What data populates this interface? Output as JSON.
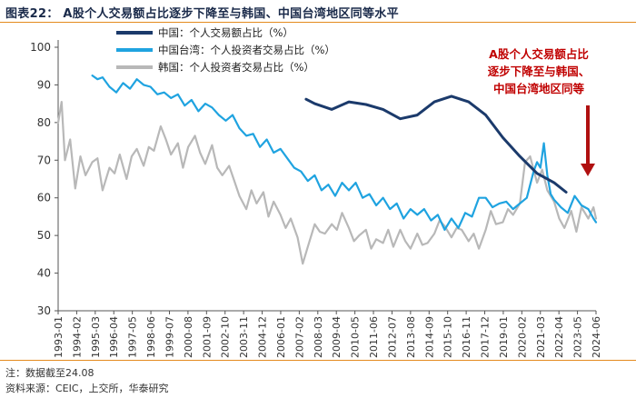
{
  "header": {
    "title": "图表22： A股个人交易额占比逐步下降至与韩国、中国台湾地区同等水平"
  },
  "footer": {
    "note": "注：数据截至24.08",
    "source": "资料来源：CEIC，上交所，华泰研究"
  },
  "annotation": {
    "lines": [
      "A股个人交易额占比",
      "逐步下降至与韩国、",
      "中国台湾地区同等"
    ],
    "color": "#c00000"
  },
  "chart_data": {
    "type": "line",
    "ylim": [
      30,
      100
    ],
    "yticks": [
      30,
      40,
      50,
      60,
      70,
      80,
      90,
      100
    ],
    "xrange": [
      1993.0,
      2024.45
    ],
    "xticks": [
      "1993-01",
      "1994-02",
      "1995-03",
      "1996-04",
      "1997-05",
      "1998-06",
      "1999-07",
      "2000-08",
      "2001-09",
      "2002-10",
      "2003-11",
      "2004-12",
      "2006-01",
      "2007-02",
      "2008-03",
      "2009-04",
      "2010-05",
      "2011-06",
      "2012-07",
      "2013-08",
      "2014-09",
      "2015-10",
      "2016-11",
      "2017-12",
      "2019-01",
      "2020-02",
      "2021-03",
      "2022-04",
      "2023-05",
      "2024-06"
    ],
    "legend_position": "top-left",
    "grid": false,
    "series": [
      {
        "name": "中国：个人交易额占比（%）",
        "color": "#1b3a6b",
        "width": 3,
        "x": [
          2007.5,
          2008.0,
          2009.0,
          2010.0,
          2011.0,
          2012.0,
          2013.0,
          2014.0,
          2015.0,
          2016.0,
          2017.0,
          2018.0,
          2019.0,
          2020.0,
          2021.0,
          2022.0,
          2022.7
        ],
        "y": [
          86.2,
          85.0,
          83.5,
          85.5,
          84.8,
          83.5,
          81.0,
          82.0,
          85.5,
          87.0,
          85.5,
          82.0,
          76.0,
          71.0,
          66.5,
          64.0,
          61.5
        ]
      },
      {
        "name": "中国台湾：个人投资者交易占比（%）",
        "color": "#1fa3e0",
        "width": 2.2,
        "x": [
          1995.0,
          1995.3,
          1995.6,
          1996.0,
          1996.4,
          1996.8,
          1997.2,
          1997.6,
          1998.0,
          1998.4,
          1998.8,
          1999.2,
          1999.6,
          2000.0,
          2000.4,
          2000.8,
          2001.2,
          2001.6,
          2002.0,
          2002.4,
          2002.8,
          2003.2,
          2003.6,
          2004.0,
          2004.4,
          2004.8,
          2005.2,
          2005.6,
          2006.0,
          2006.4,
          2006.8,
          2007.2,
          2007.6,
          2008.0,
          2008.4,
          2008.8,
          2009.2,
          2009.6,
          2010.0,
          2010.4,
          2010.8,
          2011.2,
          2011.6,
          2012.0,
          2012.4,
          2012.8,
          2013.2,
          2013.6,
          2014.0,
          2014.4,
          2014.8,
          2015.2,
          2015.6,
          2016.0,
          2016.4,
          2016.8,
          2017.2,
          2017.6,
          2018.0,
          2018.4,
          2018.8,
          2019.2,
          2019.6,
          2020.0,
          2020.4,
          2020.8,
          2021.0,
          2021.2,
          2021.4,
          2021.6,
          2021.8,
          2022.0,
          2022.4,
          2022.8,
          2023.2,
          2023.6,
          2024.0,
          2024.3,
          2024.45
        ],
        "y": [
          92.5,
          91.5,
          92.0,
          89.5,
          88.0,
          90.5,
          89.0,
          91.5,
          90.0,
          89.5,
          87.5,
          88.0,
          86.5,
          87.5,
          84.5,
          86.0,
          83.0,
          85.0,
          84.0,
          82.0,
          80.5,
          82.0,
          78.5,
          76.5,
          77.0,
          73.5,
          75.5,
          72.0,
          73.0,
          70.5,
          68.0,
          67.0,
          64.5,
          66.0,
          62.0,
          63.5,
          60.5,
          64.0,
          62.0,
          64.0,
          60.0,
          61.0,
          58.0,
          60.0,
          57.0,
          58.5,
          54.5,
          57.0,
          55.5,
          57.0,
          54.0,
          55.5,
          51.5,
          54.5,
          52.0,
          56.0,
          55.0,
          60.0,
          60.0,
          57.5,
          58.5,
          59.0,
          57.0,
          58.5,
          60.0,
          67.0,
          69.5,
          68.0,
          74.5,
          66.0,
          61.0,
          59.5,
          57.5,
          56.0,
          60.5,
          58.0,
          57.0,
          54.5,
          53.5
        ]
      },
      {
        "name": "韩国：个人投资者交易占比（%）",
        "color": "#b8b8b8",
        "width": 2.2,
        "x": [
          1993.0,
          1993.2,
          1993.4,
          1993.7,
          1994.0,
          1994.3,
          1994.6,
          1995.0,
          1995.3,
          1995.6,
          1996.0,
          1996.3,
          1996.6,
          1997.0,
          1997.3,
          1997.6,
          1998.0,
          1998.3,
          1998.6,
          1999.0,
          1999.3,
          1999.6,
          2000.0,
          2000.3,
          2000.6,
          2001.0,
          2001.3,
          2001.6,
          2002.0,
          2002.3,
          2002.6,
          2003.0,
          2003.3,
          2003.6,
          2004.0,
          2004.3,
          2004.6,
          2005.0,
          2005.3,
          2005.6,
          2006.0,
          2006.3,
          2006.6,
          2007.0,
          2007.3,
          2007.6,
          2008.0,
          2008.3,
          2008.6,
          2009.0,
          2009.3,
          2009.6,
          2010.0,
          2010.3,
          2010.6,
          2011.0,
          2011.3,
          2011.6,
          2012.0,
          2012.3,
          2012.6,
          2013.0,
          2013.3,
          2013.6,
          2014.0,
          2014.3,
          2014.6,
          2015.0,
          2015.3,
          2015.6,
          2016.0,
          2016.3,
          2016.6,
          2017.0,
          2017.3,
          2017.6,
          2018.0,
          2018.3,
          2018.6,
          2019.0,
          2019.3,
          2019.6,
          2020.0,
          2020.3,
          2020.6,
          2021.0,
          2021.3,
          2021.6,
          2022.0,
          2022.3,
          2022.6,
          2023.0,
          2023.3,
          2023.6,
          2024.0,
          2024.3,
          2024.45
        ],
        "y": [
          80.0,
          85.5,
          70.0,
          75.5,
          62.5,
          71.0,
          66.0,
          69.5,
          70.5,
          62.0,
          68.0,
          66.5,
          71.5,
          65.0,
          71.0,
          73.0,
          68.5,
          73.5,
          72.5,
          79.0,
          75.5,
          71.5,
          74.5,
          68.0,
          73.5,
          76.5,
          72.0,
          69.0,
          74.0,
          68.0,
          66.0,
          68.5,
          64.5,
          60.5,
          57.0,
          62.0,
          58.5,
          61.5,
          55.0,
          59.0,
          55.5,
          52.0,
          54.5,
          49.5,
          42.5,
          47.0,
          53.0,
          51.0,
          50.5,
          53.0,
          51.5,
          56.0,
          52.0,
          48.5,
          50.0,
          51.5,
          46.5,
          49.0,
          48.0,
          51.5,
          47.0,
          51.5,
          48.5,
          46.5,
          50.5,
          47.5,
          48.0,
          50.5,
          54.0,
          52.5,
          49.5,
          52.0,
          51.5,
          48.5,
          50.5,
          46.5,
          51.5,
          56.5,
          53.0,
          53.5,
          57.0,
          55.5,
          58.5,
          69.5,
          71.0,
          64.0,
          67.5,
          62.0,
          59.0,
          54.5,
          52.0,
          56.5,
          51.0,
          57.5,
          54.5,
          57.5,
          54.5
        ]
      }
    ]
  }
}
